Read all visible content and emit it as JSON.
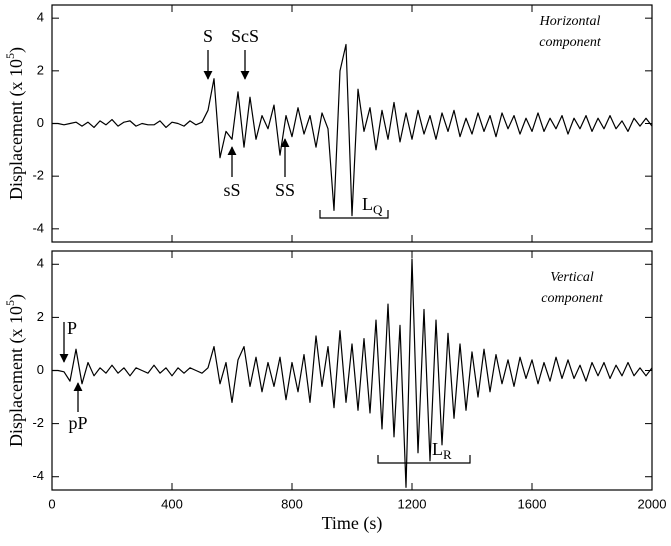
{
  "chart_data": [
    {
      "type": "line",
      "y_label": [
        "Displacement  (x 10",
        "5",
        ")"
      ],
      "component": [
        "Horizontal",
        "component"
      ],
      "annotations": [
        "S",
        "ScS",
        "sS",
        "SS"
      ],
      "wave_label": "L",
      "wave_sub": "Q",
      "xlim": [
        0,
        2000
      ],
      "xticks": [
        0,
        400,
        800,
        1200,
        1600,
        2000
      ],
      "ylim": [
        -4.5,
        4.5
      ],
      "yticks": [
        -4,
        -2,
        0,
        2,
        4
      ],
      "x": [
        0,
        20,
        40,
        60,
        80,
        100,
        120,
        140,
        160,
        180,
        200,
        220,
        240,
        260,
        280,
        300,
        320,
        340,
        360,
        380,
        400,
        420,
        440,
        460,
        480,
        500,
        520,
        540,
        560,
        580,
        600,
        620,
        640,
        660,
        680,
        700,
        720,
        740,
        760,
        780,
        800,
        820,
        840,
        860,
        880,
        900,
        920,
        940,
        960,
        980,
        1000,
        1020,
        1040,
        1060,
        1080,
        1100,
        1120,
        1140,
        1160,
        1180,
        1200,
        1220,
        1240,
        1260,
        1280,
        1300,
        1320,
        1340,
        1360,
        1380,
        1400,
        1420,
        1440,
        1460,
        1480,
        1500,
        1520,
        1540,
        1560,
        1580,
        1600,
        1620,
        1640,
        1660,
        1680,
        1700,
        1720,
        1740,
        1760,
        1780,
        1800,
        1820,
        1840,
        1860,
        1880,
        1900,
        1920,
        1940,
        1960,
        1980,
        2000
      ],
      "series": [
        {
          "color": "#000000",
          "values": [
            0,
            0,
            -0.05,
            0,
            0.05,
            -0.1,
            0.05,
            -0.15,
            0.1,
            -0.05,
            0.15,
            -0.1,
            0.05,
            0.1,
            -0.1,
            0,
            -0.05,
            -0.05,
            0.1,
            -0.15,
            0.05,
            0,
            -0.1,
            0.1,
            -0.05,
            0.05,
            0.5,
            1.7,
            -1.3,
            -0.3,
            -0.6,
            1.2,
            -0.9,
            1.0,
            -0.6,
            0.3,
            -0.2,
            0.7,
            -1.2,
            0.3,
            -0.5,
            0.6,
            -0.4,
            0.3,
            -0.9,
            0.4,
            -0.2,
            -3.3,
            2.0,
            3.0,
            -3.5,
            1.3,
            -0.3,
            0.6,
            -1.0,
            0.5,
            -0.6,
            0.8,
            -0.7,
            0.4,
            -0.6,
            0.5,
            -0.4,
            0.3,
            -0.6,
            0.4,
            -0.3,
            0.5,
            -0.5,
            0.2,
            -0.4,
            0.4,
            -0.3,
            0.3,
            -0.5,
            0.4,
            -0.2,
            0.3,
            -0.4,
            0.2,
            -0.3,
            0.4,
            -0.3,
            0.2,
            -0.2,
            0.3,
            -0.4,
            0.2,
            -0.2,
            0.3,
            -0.3,
            0.2,
            -0.2,
            0.3,
            -0.2,
            0.1,
            -0.3,
            0.2,
            -0.1,
            0.2,
            -0.1
          ]
        }
      ]
    },
    {
      "type": "line",
      "y_label": [
        "Displacement  (x 10",
        "5",
        ")"
      ],
      "x_label": "Time (s)",
      "component": [
        "Vertical",
        "component"
      ],
      "annotations": [
        "P",
        "pP"
      ],
      "wave_label": "L",
      "wave_sub": "R",
      "xlim": [
        0,
        2000
      ],
      "xticks": [
        0,
        400,
        800,
        1200,
        1600,
        2000
      ],
      "ylim": [
        -4.5,
        4.5
      ],
      "yticks": [
        -4,
        -2,
        0,
        2,
        4
      ],
      "x": [
        0,
        20,
        40,
        60,
        80,
        100,
        120,
        140,
        160,
        180,
        200,
        220,
        240,
        260,
        280,
        300,
        320,
        340,
        360,
        380,
        400,
        420,
        440,
        460,
        480,
        500,
        520,
        540,
        560,
        580,
        600,
        620,
        640,
        660,
        680,
        700,
        720,
        740,
        760,
        780,
        800,
        820,
        840,
        860,
        880,
        900,
        920,
        940,
        960,
        980,
        1000,
        1020,
        1040,
        1060,
        1080,
        1100,
        1120,
        1140,
        1160,
        1180,
        1200,
        1220,
        1240,
        1260,
        1280,
        1300,
        1320,
        1340,
        1360,
        1380,
        1400,
        1420,
        1440,
        1460,
        1480,
        1500,
        1520,
        1540,
        1560,
        1580,
        1600,
        1620,
        1640,
        1660,
        1680,
        1700,
        1720,
        1740,
        1760,
        1780,
        1800,
        1820,
        1840,
        1860,
        1880,
        1900,
        1920,
        1940,
        1960,
        1980,
        2000
      ],
      "series": [
        {
          "color": "#000000",
          "values": [
            0,
            0,
            -0.05,
            -0.4,
            0.8,
            -0.5,
            0.3,
            -0.2,
            0.1,
            -0.1,
            0.2,
            -0.1,
            0.1,
            -0.2,
            0.1,
            0,
            -0.1,
            0.2,
            -0.1,
            0.1,
            -0.2,
            0.1,
            -0.1,
            0.1,
            0,
            -0.1,
            0.1,
            0.9,
            -0.5,
            0.3,
            -1.2,
            0.4,
            0.9,
            -0.6,
            0.5,
            -0.8,
            0.3,
            -0.6,
            0.5,
            -1.1,
            0.3,
            -0.8,
            0.6,
            -1.2,
            1.3,
            -0.6,
            0.9,
            -1.4,
            1.5,
            -1.2,
            1.0,
            -1.5,
            1.2,
            -1.6,
            1.9,
            -2.2,
            2.5,
            -2.5,
            1.7,
            -4.4,
            4.2,
            -3.1,
            2.3,
            -3.4,
            1.9,
            -2.8,
            1.4,
            -1.8,
            1.0,
            -1.5,
            0.7,
            -1.0,
            0.8,
            -0.8,
            0.6,
            -0.5,
            0.4,
            -0.6,
            0.5,
            -0.3,
            0.4,
            -0.5,
            0.3,
            -0.4,
            0.5,
            -0.3,
            0.4,
            -0.3,
            0.2,
            -0.4,
            0.3,
            -0.2,
            0.3,
            -0.3,
            0.2,
            -0.2,
            0.3,
            -0.2,
            0.1,
            -0.2,
            0.1
          ]
        }
      ]
    }
  ]
}
